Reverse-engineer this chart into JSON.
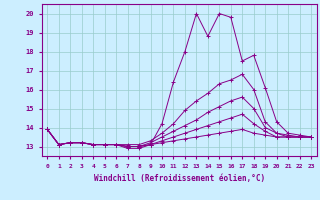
{
  "title": "",
  "xlabel": "Windchill (Refroidissement éolien,°C)",
  "bg_color": "#cceeff",
  "line_color": "#880088",
  "xlim": [
    -0.5,
    23.5
  ],
  "ylim": [
    12.5,
    20.5
  ],
  "xticks": [
    0,
    1,
    2,
    3,
    4,
    5,
    6,
    7,
    8,
    9,
    10,
    11,
    12,
    13,
    14,
    15,
    16,
    17,
    18,
    19,
    20,
    21,
    22,
    23
  ],
  "yticks": [
    13,
    14,
    15,
    16,
    17,
    18,
    19,
    20
  ],
  "grid_color": "#99cccc",
  "lines": [
    [
      13.9,
      13.1,
      13.2,
      13.2,
      13.1,
      13.1,
      13.1,
      12.9,
      12.9,
      13.1,
      14.2,
      16.4,
      18.0,
      20.0,
      18.8,
      20.0,
      19.8,
      17.5,
      17.8,
      16.1,
      14.3,
      13.7,
      13.6,
      13.5
    ],
    [
      13.9,
      13.1,
      13.2,
      13.2,
      13.1,
      13.1,
      13.1,
      13.1,
      13.1,
      13.3,
      13.7,
      14.2,
      14.9,
      15.4,
      15.8,
      16.3,
      16.5,
      16.8,
      16.0,
      14.3,
      13.7,
      13.6,
      13.5,
      13.5
    ],
    [
      13.9,
      13.1,
      13.2,
      13.2,
      13.1,
      13.1,
      13.1,
      13.0,
      13.0,
      13.2,
      13.5,
      13.8,
      14.1,
      14.4,
      14.8,
      15.1,
      15.4,
      15.6,
      15.0,
      14.0,
      13.7,
      13.5,
      13.5,
      13.5
    ],
    [
      13.9,
      13.1,
      13.2,
      13.2,
      13.1,
      13.1,
      13.1,
      13.0,
      13.0,
      13.1,
      13.3,
      13.5,
      13.7,
      13.9,
      14.1,
      14.3,
      14.5,
      14.7,
      14.2,
      13.8,
      13.5,
      13.5,
      13.5,
      13.5
    ],
    [
      13.9,
      13.1,
      13.2,
      13.2,
      13.1,
      13.1,
      13.1,
      13.0,
      13.0,
      13.1,
      13.2,
      13.3,
      13.4,
      13.5,
      13.6,
      13.7,
      13.8,
      13.9,
      13.7,
      13.6,
      13.5,
      13.5,
      13.5,
      13.5
    ]
  ]
}
